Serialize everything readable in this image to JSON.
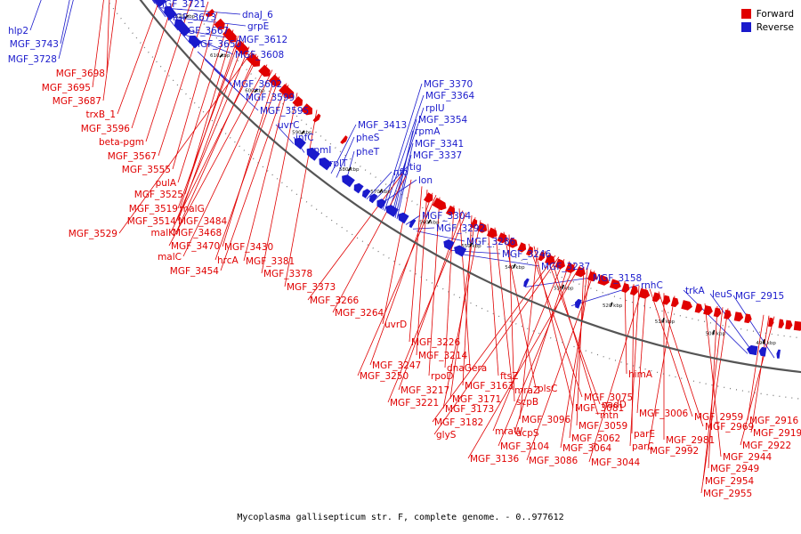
{
  "caption": "Mycoplasma gallisepticum str. F, complete genome. - 0..977612",
  "legend": [
    {
      "label": "Forward",
      "color": "#e00000"
    },
    {
      "label": "Reverse",
      "color": "#1a1acc"
    }
  ],
  "colors": {
    "forward": "#e00000",
    "reverse": "#1a1acc",
    "backbone": "#555555"
  },
  "scale_ticks": [
    "630 kbp",
    "620 kbp",
    "610 kbp",
    "600 kbp",
    "590 kbp",
    "580 kbp",
    "570 kbp",
    "560 kbp",
    "550 kbp",
    "540 kbp",
    "530 kbp",
    "520 kbp",
    "510 kbp",
    "500 kbp",
    "490 kbp"
  ],
  "reverse_labels": [
    "MGF_3721",
    "MGF_3673",
    "dnaJ_6",
    "MGF_3667",
    "grpE",
    "MGF_3650",
    "MGF_3612",
    "MGF_3608",
    "hlp2",
    "MGF_3743",
    "MGF_3728",
    "MGF_3602",
    "MGF_3599",
    "MGF_3595",
    "uvrC",
    "infC",
    "rpmI",
    "rplT",
    "pheS",
    "pheT",
    "MGF_3413",
    "nfo",
    "tig",
    "lon",
    "MGF_3370",
    "MGF_3364",
    "rplU",
    "MGF_3354",
    "rpmA",
    "MGF_3341",
    "MGF_3337",
    "MGF_3304",
    "MGF_3292",
    "MGF_3286",
    "MGF_3246",
    "MGF_3237",
    "MGF_3158",
    "rnhC",
    "trkA",
    "leuS",
    "MGF_2915"
  ],
  "forward_labels": [
    "MGF_3698",
    "MGF_3695",
    "MGF_3687",
    "trxB_1",
    "MGF_3596",
    "beta-pgm",
    "MGF_3567",
    "MGF_3555",
    "pulA",
    "MGF_3525",
    "MGF_3519",
    "malG",
    "MGF_3514",
    "MGF_3484",
    "MGF_3529",
    "malK",
    "MGF_3468",
    "MGF_3470",
    "malC",
    "MGF_3430",
    "hrcA",
    "MGF_3381",
    "MGF_3454",
    "MGF_3378",
    "MGF_3373",
    "MGF_3266",
    "MGF_3264",
    "uvrD",
    "MGF_3226",
    "MGF_3214",
    "MGF_3247",
    "MGF_3250",
    "rpoD",
    "dnaG",
    "era",
    "MGF_3217",
    "MGF_3221",
    "MGF_3163",
    "MGF_3171",
    "MGF_3173",
    "ftsZ",
    "mraZ",
    "plsC",
    "scpB",
    "MGF_3075",
    "MGF_3081",
    "MGF_3096",
    "nadD",
    "mtn",
    "MGF_3182",
    "glyS",
    "mraW",
    "acpS",
    "MGF_3104",
    "MGF_3136",
    "MGF_3059",
    "MGF_3062",
    "MGF_3064",
    "MGF_3086",
    "himA",
    "parE",
    "parC",
    "MGF_3044",
    "MGF_3006",
    "MGF_2959",
    "MGF_2969",
    "MGF_2981",
    "MGF_2992",
    "MGF_2944",
    "MGF_2949",
    "MGF_2954",
    "MGF_2955",
    "MGF_2916",
    "MGF_2919",
    "MGF_2922"
  ]
}
